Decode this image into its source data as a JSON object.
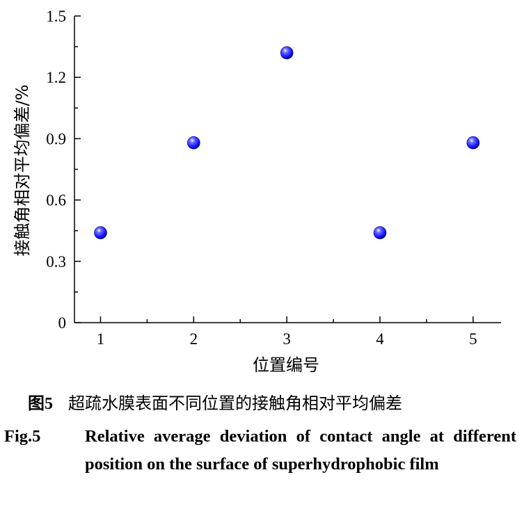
{
  "chart_data": {
    "type": "scatter",
    "x": [
      1,
      2,
      3,
      4,
      5
    ],
    "y": [
      0.44,
      0.88,
      1.32,
      0.44,
      0.88
    ],
    "xlabel": "位置编号",
    "ylabel": "接触角相对平均偏差/%",
    "xlim": [
      0.72,
      5.3
    ],
    "ylim": [
      0,
      1.5
    ],
    "xticks": [
      1,
      2,
      3,
      4,
      5
    ],
    "yticks": [
      0,
      0.3,
      0.6,
      0.9,
      1.2,
      1.5
    ],
    "ytick_labels": [
      "0",
      "0.3",
      "0.6",
      "0.9",
      "1.2",
      "1.5"
    ],
    "marker_color": "#1a1aff",
    "grid": false,
    "legend": "none"
  },
  "caption": {
    "cn_fig_cn": "图",
    "cn_fig_no": "5",
    "cn_text": "超疏水膜表面不同位置的接触角相对平均偏差",
    "en_label": "Fig.5",
    "en_text": "Relative average deviation of contact angle at different position on the surface of superhydrophobic film"
  }
}
